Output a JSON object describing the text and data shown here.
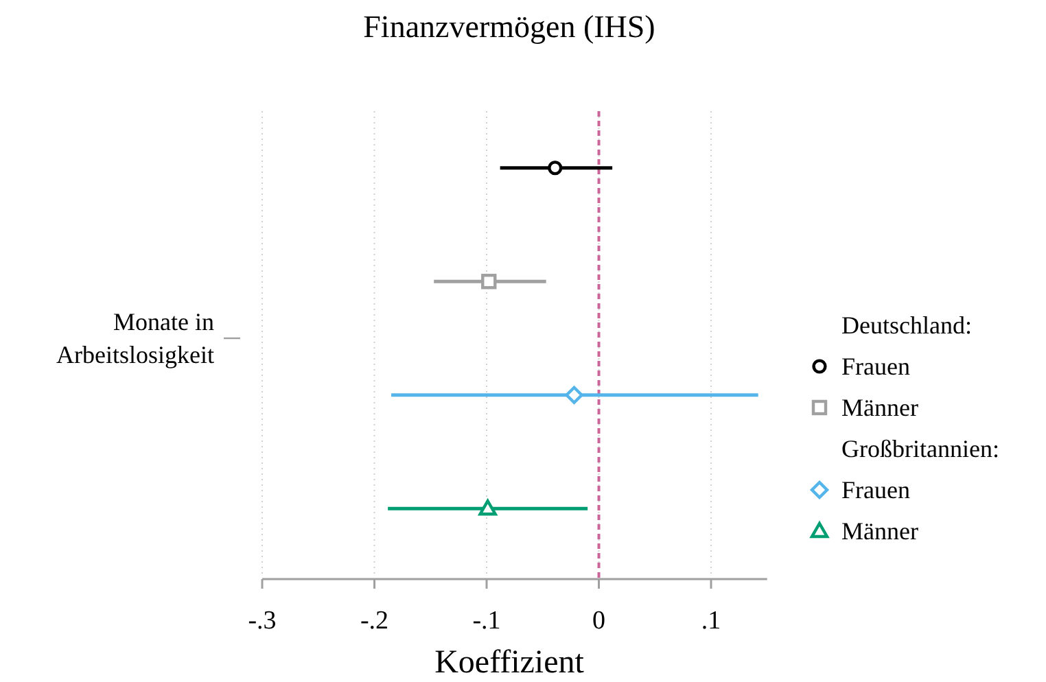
{
  "chart_data": {
    "type": "scatter",
    "orientation": "horizontal",
    "title": "Finanzvermögen (IHS)",
    "xlabel": "Koeffizient",
    "ylabel": "Monate in Arbeitslosigkeit",
    "categories": [
      null,
      null,
      null,
      null
    ],
    "series": [
      {
        "name": "Frauen",
        "color": "#000000",
        "marker": "circle",
        "values": [
          -0.039,
          null,
          null,
          null
        ],
        "errors": [
          [
            -0.088,
            0.012
          ],
          null,
          null,
          null
        ]
      },
      {
        "name": "Männer",
        "color": "#a0a0a0",
        "marker": "square",
        "values": [
          null,
          -0.098,
          null,
          null
        ],
        "errors": [
          null,
          [
            -0.147,
            -0.047
          ],
          null,
          null
        ]
      },
      {
        "name": "Frauen",
        "color": "#55b4e9",
        "marker": "diamond",
        "values": [
          null,
          null,
          -0.022,
          null
        ],
        "errors": [
          null,
          null,
          [
            -0.185,
            0.142
          ],
          null
        ]
      },
      {
        "name": "Männer",
        "color": "#009e73",
        "marker": "triangle",
        "values": [
          null,
          null,
          null,
          -0.099
        ],
        "errors": [
          null,
          null,
          null,
          [
            -0.188,
            -0.01
          ]
        ]
      }
    ],
    "annotations": [
      "Deutschland:",
      "Großbritannien:"
    ],
    "xlim": [
      -0.3,
      0.15
    ],
    "xticks": [
      {
        "value": -0.3,
        "label": "-.3"
      },
      {
        "value": -0.2,
        "label": "-.2"
      },
      {
        "value": -0.1,
        "label": "-.1"
      },
      0,
      {
        "value": 0.1,
        "label": ".1"
      }
    ],
    "ref_lines": [
      {
        "axis": "x",
        "value": 0,
        "color": "#cc6699",
        "line_style": "dashed"
      }
    ],
    "grid": "x",
    "legend": "right"
  }
}
